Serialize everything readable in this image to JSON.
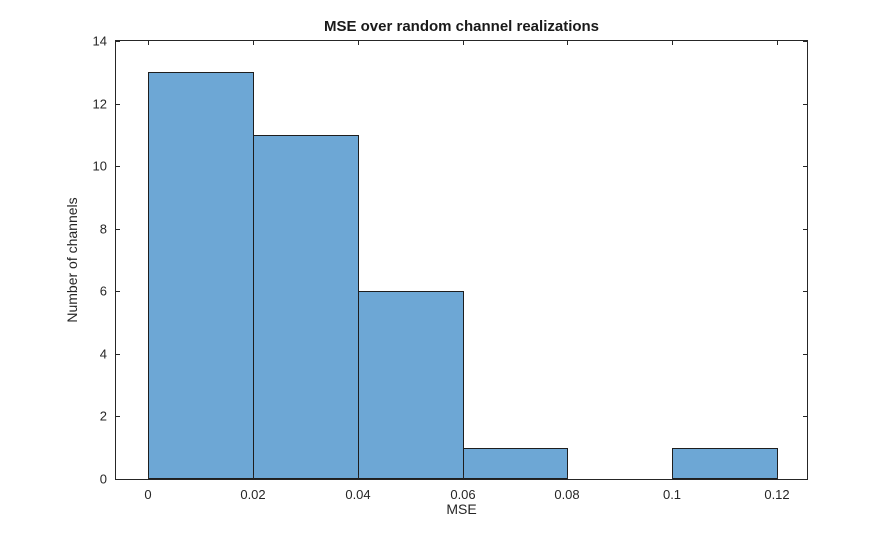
{
  "figure": {
    "background": "#FFFFFF"
  },
  "chart_data": {
    "type": "bar",
    "subtype": "histogram",
    "title": "MSE over random channel realizations",
    "xlabel": "MSE",
    "ylabel": "Number of channels",
    "bin_edges": [
      0,
      0.02,
      0.04,
      0.06,
      0.08,
      0.1,
      0.12
    ],
    "counts": [
      13,
      11,
      6,
      1,
      0,
      1
    ],
    "xticks": [
      {
        "value": 0,
        "label": "0"
      },
      {
        "value": 0.02,
        "label": "0.02"
      },
      {
        "value": 0.04,
        "label": "0.04"
      },
      {
        "value": 0.06,
        "label": "0.06"
      },
      {
        "value": 0.08,
        "label": "0.08"
      },
      {
        "value": 0.1,
        "label": "0.1"
      },
      {
        "value": 0.12,
        "label": "0.12"
      }
    ],
    "yticks": [
      {
        "value": 0,
        "label": "0"
      },
      {
        "value": 2,
        "label": "2"
      },
      {
        "value": 4,
        "label": "4"
      },
      {
        "value": 6,
        "label": "6"
      },
      {
        "value": 8,
        "label": "8"
      },
      {
        "value": 10,
        "label": "10"
      },
      {
        "value": 12,
        "label": "12"
      },
      {
        "value": 14,
        "label": "14"
      }
    ],
    "xlim": [
      -0.0061,
      0.1257
    ],
    "ylim": [
      0,
      14
    ],
    "grid": false,
    "legend": null,
    "box": true,
    "tick_direction": "in",
    "colors": {
      "bar_fill": "#6DA7D5",
      "bar_edge": "#1E1E1E",
      "axis": "#262626",
      "text": "#262626",
      "title": "#1A1A1A",
      "background": "#FFFFFF"
    }
  }
}
